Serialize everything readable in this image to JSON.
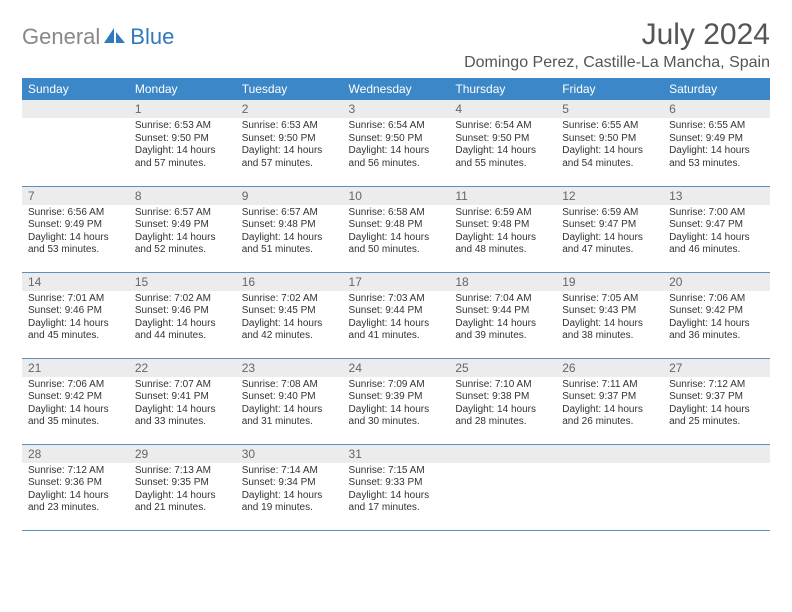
{
  "logo": {
    "part1": "General",
    "part2": "Blue"
  },
  "title": "July 2024",
  "location": "Domingo Perez, Castille-La Mancha, Spain",
  "colors": {
    "header_bg": "#3b87c8",
    "header_text": "#ffffff",
    "daynum_bg": "#ececec",
    "daynum_text": "#666666",
    "border": "#5a8fbf",
    "logo_gray": "#888888",
    "logo_blue": "#2f7abf",
    "body_text": "#333333"
  },
  "weekdays": [
    "Sunday",
    "Monday",
    "Tuesday",
    "Wednesday",
    "Thursday",
    "Friday",
    "Saturday"
  ],
  "weeks": [
    [
      null,
      {
        "n": "1",
        "sr": "6:53 AM",
        "ss": "9:50 PM",
        "dl": "14 hours and 57 minutes."
      },
      {
        "n": "2",
        "sr": "6:53 AM",
        "ss": "9:50 PM",
        "dl": "14 hours and 57 minutes."
      },
      {
        "n": "3",
        "sr": "6:54 AM",
        "ss": "9:50 PM",
        "dl": "14 hours and 56 minutes."
      },
      {
        "n": "4",
        "sr": "6:54 AM",
        "ss": "9:50 PM",
        "dl": "14 hours and 55 minutes."
      },
      {
        "n": "5",
        "sr": "6:55 AM",
        "ss": "9:50 PM",
        "dl": "14 hours and 54 minutes."
      },
      {
        "n": "6",
        "sr": "6:55 AM",
        "ss": "9:49 PM",
        "dl": "14 hours and 53 minutes."
      }
    ],
    [
      {
        "n": "7",
        "sr": "6:56 AM",
        "ss": "9:49 PM",
        "dl": "14 hours and 53 minutes."
      },
      {
        "n": "8",
        "sr": "6:57 AM",
        "ss": "9:49 PM",
        "dl": "14 hours and 52 minutes."
      },
      {
        "n": "9",
        "sr": "6:57 AM",
        "ss": "9:48 PM",
        "dl": "14 hours and 51 minutes."
      },
      {
        "n": "10",
        "sr": "6:58 AM",
        "ss": "9:48 PM",
        "dl": "14 hours and 50 minutes."
      },
      {
        "n": "11",
        "sr": "6:59 AM",
        "ss": "9:48 PM",
        "dl": "14 hours and 48 minutes."
      },
      {
        "n": "12",
        "sr": "6:59 AM",
        "ss": "9:47 PM",
        "dl": "14 hours and 47 minutes."
      },
      {
        "n": "13",
        "sr": "7:00 AM",
        "ss": "9:47 PM",
        "dl": "14 hours and 46 minutes."
      }
    ],
    [
      {
        "n": "14",
        "sr": "7:01 AM",
        "ss": "9:46 PM",
        "dl": "14 hours and 45 minutes."
      },
      {
        "n": "15",
        "sr": "7:02 AM",
        "ss": "9:46 PM",
        "dl": "14 hours and 44 minutes."
      },
      {
        "n": "16",
        "sr": "7:02 AM",
        "ss": "9:45 PM",
        "dl": "14 hours and 42 minutes."
      },
      {
        "n": "17",
        "sr": "7:03 AM",
        "ss": "9:44 PM",
        "dl": "14 hours and 41 minutes."
      },
      {
        "n": "18",
        "sr": "7:04 AM",
        "ss": "9:44 PM",
        "dl": "14 hours and 39 minutes."
      },
      {
        "n": "19",
        "sr": "7:05 AM",
        "ss": "9:43 PM",
        "dl": "14 hours and 38 minutes."
      },
      {
        "n": "20",
        "sr": "7:06 AM",
        "ss": "9:42 PM",
        "dl": "14 hours and 36 minutes."
      }
    ],
    [
      {
        "n": "21",
        "sr": "7:06 AM",
        "ss": "9:42 PM",
        "dl": "14 hours and 35 minutes."
      },
      {
        "n": "22",
        "sr": "7:07 AM",
        "ss": "9:41 PM",
        "dl": "14 hours and 33 minutes."
      },
      {
        "n": "23",
        "sr": "7:08 AM",
        "ss": "9:40 PM",
        "dl": "14 hours and 31 minutes."
      },
      {
        "n": "24",
        "sr": "7:09 AM",
        "ss": "9:39 PM",
        "dl": "14 hours and 30 minutes."
      },
      {
        "n": "25",
        "sr": "7:10 AM",
        "ss": "9:38 PM",
        "dl": "14 hours and 28 minutes."
      },
      {
        "n": "26",
        "sr": "7:11 AM",
        "ss": "9:37 PM",
        "dl": "14 hours and 26 minutes."
      },
      {
        "n": "27",
        "sr": "7:12 AM",
        "ss": "9:37 PM",
        "dl": "14 hours and 25 minutes."
      }
    ],
    [
      {
        "n": "28",
        "sr": "7:12 AM",
        "ss": "9:36 PM",
        "dl": "14 hours and 23 minutes."
      },
      {
        "n": "29",
        "sr": "7:13 AM",
        "ss": "9:35 PM",
        "dl": "14 hours and 21 minutes."
      },
      {
        "n": "30",
        "sr": "7:14 AM",
        "ss": "9:34 PM",
        "dl": "14 hours and 19 minutes."
      },
      {
        "n": "31",
        "sr": "7:15 AM",
        "ss": "9:33 PM",
        "dl": "14 hours and 17 minutes."
      },
      null,
      null,
      null
    ]
  ],
  "labels": {
    "sunrise": "Sunrise:",
    "sunset": "Sunset:",
    "daylight": "Daylight:"
  }
}
